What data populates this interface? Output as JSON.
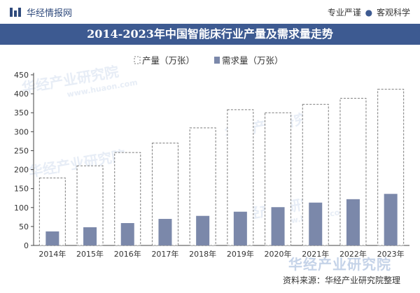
{
  "header": {
    "logo_text": "华经情报网",
    "tagline_left": "专业严谨",
    "tagline_right": "客观科学"
  },
  "watermark": {
    "text": "华经产业研究院",
    "text_en": "www.huaon.com"
  },
  "footer": {
    "logo_text": "华经产业研究院",
    "source": "资料来源：华经产业研究院整理"
  },
  "colors": {
    "title_bg": "#3d5a91",
    "demand_bar": "#7b88aa",
    "production_outline": "#7b7b7b"
  },
  "chart_data": {
    "type": "bar",
    "title": "2014-2023年中国智能床行业产量及需求量走势",
    "categories": [
      "2014年",
      "2015年",
      "2016年",
      "2017年",
      "2018年",
      "2019年",
      "2020年",
      "2021年",
      "2022年",
      "2023年"
    ],
    "series": [
      {
        "name": "产量（万张）",
        "style": "dashed-outline",
        "values": [
          178,
          210,
          245,
          270,
          310,
          358,
          350,
          372,
          388,
          412
        ]
      },
      {
        "name": "需求量（万张）",
        "style": "solid",
        "values": [
          37,
          48,
          59,
          70,
          78,
          89,
          101,
          113,
          122,
          136
        ]
      }
    ],
    "y_ticks": [
      "0",
      "50",
      "100",
      "150",
      "200",
      "250",
      "300",
      "350",
      "400",
      "450"
    ],
    "ylim": [
      0,
      450
    ],
    "grid": false,
    "legend_position": "top-left",
    "overlay": true
  }
}
